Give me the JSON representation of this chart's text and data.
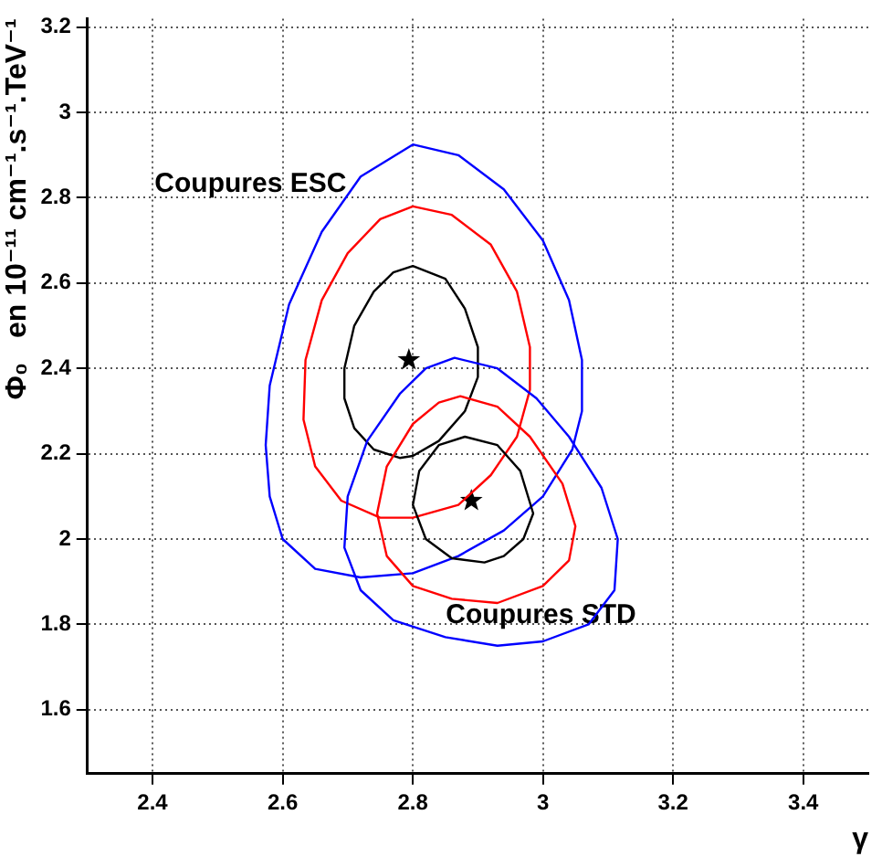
{
  "chart_data": {
    "type": "scatter",
    "xlabel": "γ",
    "ylabel": "Φ₀   en 10⁻¹¹ cm⁻¹.s⁻¹.TeV⁻¹",
    "xlim": [
      2.3,
      3.5
    ],
    "xticks": [
      2.4,
      2.6,
      2.8,
      3,
      3.2,
      3.4
    ],
    "ylim": [
      1.45,
      3.22
    ],
    "yticks": [
      1.6,
      1.8,
      2,
      2.2,
      2.4,
      2.6,
      2.8,
      3,
      3.2
    ],
    "grid": true,
    "legend": false,
    "series": [
      {
        "marker": "star",
        "color": "#000000",
        "x": [
          2.794,
          2.89
        ],
        "values": [
          2.42,
          2.09
        ]
      }
    ],
    "annotations": [
      "Coupures ESC",
      "Coupures STD"
    ]
  }
}
